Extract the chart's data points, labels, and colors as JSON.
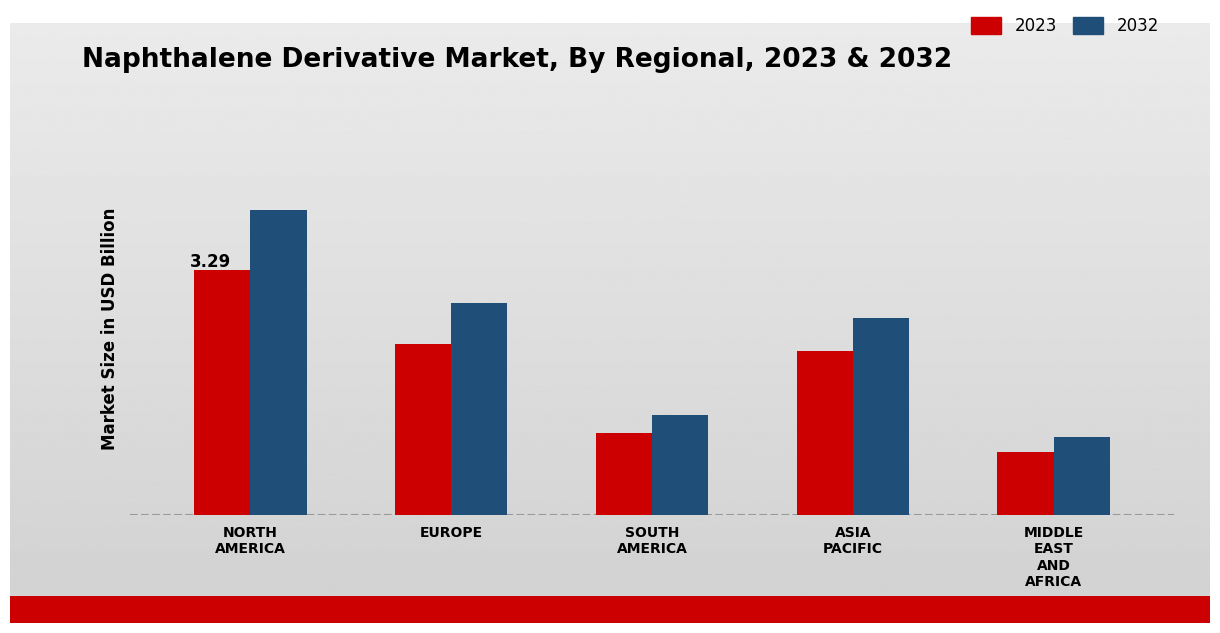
{
  "title": "Naphthalene Derivative Market, By Regional, 2023 & 2032",
  "ylabel": "Market Size in USD Billion",
  "categories": [
    "NORTH\nAMERICA",
    "EUROPE",
    "SOUTH\nAMERICA",
    "ASIA\nPACIFIC",
    "MIDDLE\nEAST\nAND\nAFRICA"
  ],
  "values_2023": [
    3.29,
    2.3,
    1.1,
    2.2,
    0.85
  ],
  "values_2032": [
    4.1,
    2.85,
    1.35,
    2.65,
    1.05
  ],
  "color_2023": "#cc0000",
  "color_2032": "#1f4e79",
  "bar_annotation": "3.29",
  "annotation_index": 0,
  "ylim": [
    0,
    5.0
  ],
  "bar_width": 0.28,
  "legend_labels": [
    "2023",
    "2032"
  ],
  "title_fontsize": 19,
  "label_fontsize": 12,
  "tick_fontsize": 10,
  "bg_color": "#d8d8d8",
  "footer_color": "#cc0000",
  "dashed_color": "#999999"
}
